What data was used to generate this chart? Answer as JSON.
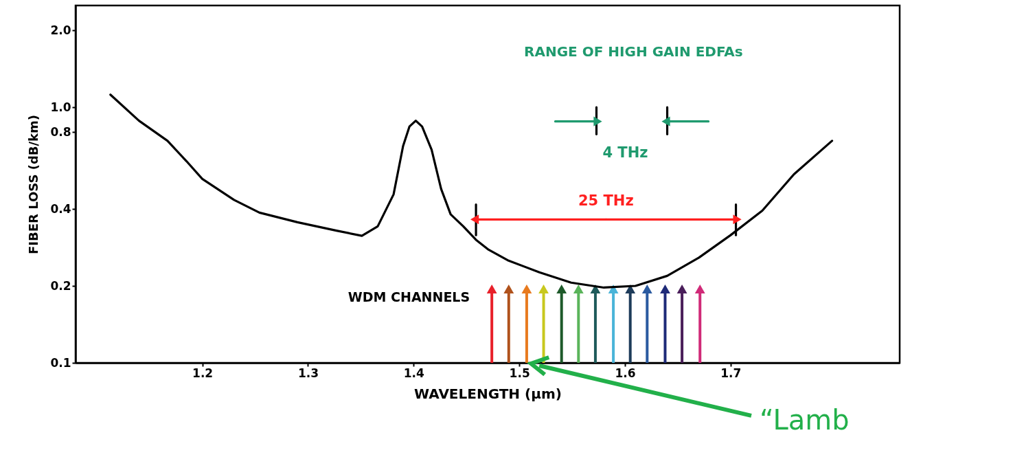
{
  "chart_data": {
    "type": "line",
    "xlabel": "WAVELENGTH (µm)",
    "ylabel": "FIBER LOSS (dB/km)",
    "xlim": [
      1.08,
      1.86
    ],
    "xticks": [
      1.2,
      1.3,
      1.4,
      1.5,
      1.6,
      1.7
    ],
    "ylim": [
      0.1,
      2.5
    ],
    "yticks": [
      0.1,
      0.2,
      0.4,
      0.8,
      {
        "value": 1.0,
        "label": "1.0"
      },
      {
        "value": 2.0,
        "label": "2.0"
      }
    ],
    "log": true,
    "grid": false,
    "series": [
      {
        "type": "line",
        "color": "#000000",
        "x": [
          1.459,
          1.459
        ],
        "values": [
          0.316,
          0.416
        ]
      },
      {
        "type": "line",
        "color": "#000000",
        "x": [
          1.705,
          1.705
        ],
        "values": [
          0.316,
          0.416
        ]
      },
      {
        "type": "line",
        "color": "#ff2020",
        "marker": "triangle",
        "x": [
          1.582,
          1.459
        ],
        "values": [
          0.364,
          0.364
        ]
      },
      {
        "type": "line",
        "color": "#ff2020",
        "marker": "triangle",
        "name": "25 THz",
        "x": [
          1.582,
          1.705
        ],
        "values": [
          0.364,
          0.364
        ]
      },
      {
        "type": "line",
        "color": "#000000",
        "x": [
          1.573,
          1.573
        ],
        "values": [
          0.784,
          1.0
        ]
      },
      {
        "type": "line",
        "color": "#000000",
        "x": [
          1.64,
          1.64
        ],
        "values": [
          0.784,
          1.0
        ]
      },
      {
        "type": "line",
        "color": "#1f9a6e",
        "marker": "triangle",
        "x": [
          1.534,
          1.573
        ],
        "values": [
          0.88,
          0.88
        ]
      },
      {
        "type": "line",
        "color": "#1f9a6e",
        "marker": "triangle",
        "x": [
          1.679,
          1.64
        ],
        "values": [
          0.88,
          0.88
        ]
      },
      {
        "type": "lollipop",
        "name": "WDM CHANNELS",
        "marker": "triangle",
        "x": [
          1.474,
          1.49,
          1.507,
          1.523,
          1.54,
          1.556,
          1.572,
          1.589,
          1.605,
          1.621,
          1.638,
          1.654,
          1.671
        ],
        "values": [
          0.192,
          0.192,
          0.192,
          0.192,
          0.192,
          0.192,
          0.192,
          0.192,
          0.192,
          0.192,
          0.192,
          0.192,
          0.192
        ],
        "colors": [
          "#e8202a",
          "#b0521c",
          "#e87a1e",
          "#c8c81e",
          "#1e5a2a",
          "#5ab45a",
          "#1e5a5a",
          "#4ab4d8",
          "#1e3c5a",
          "#2a5aa0",
          "#1e2a78",
          "#4a1e5a",
          "#d02a78"
        ]
      },
      {
        "color": "#000000",
        "line_style": "solid",
        "x": [
          1.113,
          1.14,
          1.167,
          1.185,
          1.2,
          1.23,
          1.254,
          1.29,
          1.327,
          1.351,
          1.366,
          1.381,
          1.39,
          1.396,
          1.402,
          1.408,
          1.417,
          1.426,
          1.435,
          1.447,
          1.459,
          1.471,
          1.489,
          1.519,
          1.549,
          1.58,
          1.61,
          1.64,
          1.67,
          1.7,
          1.73,
          1.76,
          1.796
        ],
        "values": [
          1.12,
          0.886,
          0.739,
          0.615,
          0.524,
          0.434,
          0.387,
          0.355,
          0.329,
          0.314,
          0.342,
          0.456,
          0.705,
          0.84,
          0.886,
          0.84,
          0.682,
          0.479,
          0.381,
          0.342,
          0.303,
          0.277,
          0.252,
          0.226,
          0.206,
          0.197,
          0.2,
          0.219,
          0.258,
          0.316,
          0.394,
          0.547,
          0.739
        ]
      }
    ],
    "annotations": [
      "RANGE OF HIGH GAIN EDFAs",
      "4 THz",
      "“Lamb"
    ]
  }
}
